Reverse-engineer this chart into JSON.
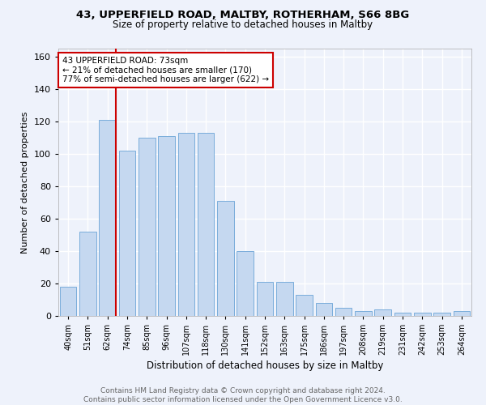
{
  "title1": "43, UPPERFIELD ROAD, MALTBY, ROTHERHAM, S66 8BG",
  "title2": "Size of property relative to detached houses in Maltby",
  "xlabel": "Distribution of detached houses by size in Maltby",
  "ylabel": "Number of detached properties",
  "footer": "Contains HM Land Registry data © Crown copyright and database right 2024.\nContains public sector information licensed under the Open Government Licence v3.0.",
  "categories": [
    "40sqm",
    "51sqm",
    "62sqm",
    "74sqm",
    "85sqm",
    "96sqm",
    "107sqm",
    "118sqm",
    "130sqm",
    "141sqm",
    "152sqm",
    "163sqm",
    "175sqm",
    "186sqm",
    "197sqm",
    "208sqm",
    "219sqm",
    "231sqm",
    "242sqm",
    "253sqm",
    "264sqm"
  ],
  "values": [
    18,
    52,
    121,
    102,
    110,
    111,
    113,
    113,
    71,
    40,
    21,
    21,
    13,
    8,
    5,
    3,
    4,
    2,
    2,
    2,
    3
  ],
  "bar_color": "#c5d8f0",
  "bar_edge_color": "#7aaddb",
  "ylim": [
    0,
    165
  ],
  "yticks": [
    0,
    20,
    40,
    60,
    80,
    100,
    120,
    140,
    160
  ],
  "property_line_color": "#cc0000",
  "annotation_text": "43 UPPERFIELD ROAD: 73sqm\n← 21% of detached houses are smaller (170)\n77% of semi-detached houses are larger (622) →",
  "annotation_box_color": "#cc0000",
  "annotation_fontsize": 7.5,
  "bg_color": "#eef2fb",
  "grid_color": "#ffffff",
  "title1_fontsize": 9.5,
  "title2_fontsize": 8.5,
  "xlabel_fontsize": 8.5,
  "ylabel_fontsize": 8.0,
  "footer_fontsize": 6.5,
  "xtick_fontsize": 7.0,
  "ytick_fontsize": 8.0
}
